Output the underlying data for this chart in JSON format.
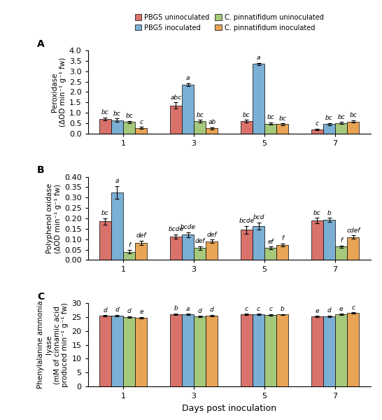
{
  "days": [
    1,
    3,
    5,
    7
  ],
  "bar_colors": [
    "#d9726a",
    "#7bafd4",
    "#a5c87a",
    "#e8a455"
  ],
  "legend_labels": [
    "PBG5 uninoculated",
    "PBG5 inoculated",
    "C. pinnatifidum uninoculated",
    "C. pinnatifidum inoculated"
  ],
  "panel_A": {
    "title": "A",
    "ylabel": "Peroxidase\n(ΔOD min⁻¹ g⁻¹ fw)",
    "ylim": [
      0,
      4.0
    ],
    "yticks": [
      0,
      0.5,
      1.0,
      1.5,
      2.0,
      2.5,
      3.0,
      3.5,
      4.0
    ],
    "values": [
      [
        0.7,
        0.65,
        0.55,
        0.27
      ],
      [
        1.35,
        2.35,
        0.6,
        0.25
      ],
      [
        0.6,
        3.35,
        0.48,
        0.45
      ],
      [
        0.2,
        0.45,
        0.5,
        0.58
      ]
    ],
    "errors": [
      [
        0.08,
        0.07,
        0.06,
        0.05
      ],
      [
        0.15,
        0.08,
        0.06,
        0.05
      ],
      [
        0.06,
        0.06,
        0.05,
        0.04
      ],
      [
        0.04,
        0.06,
        0.05,
        0.06
      ]
    ],
    "letters": [
      [
        "bc",
        "bc",
        "bc",
        "c"
      ],
      [
        "abc",
        "a",
        "bc",
        "ab"
      ],
      [
        "bc",
        "a",
        "bc",
        "bc"
      ],
      [
        "c",
        "bc",
        "bc",
        "bc"
      ]
    ]
  },
  "panel_B": {
    "title": "B",
    "ylabel": "Polyphenol oxidase\n(ΔOD min⁻¹ g⁻¹ fw)",
    "ylim": [
      0,
      0.4
    ],
    "yticks": [
      0,
      0.05,
      0.1,
      0.15,
      0.2,
      0.25,
      0.3,
      0.35,
      0.4
    ],
    "values": [
      [
        0.185,
        0.325,
        0.04,
        0.082
      ],
      [
        0.113,
        0.122,
        0.058,
        0.09
      ],
      [
        0.145,
        0.163,
        0.058,
        0.072
      ],
      [
        0.19,
        0.192,
        0.064,
        0.11
      ]
    ],
    "errors": [
      [
        0.015,
        0.03,
        0.008,
        0.01
      ],
      [
        0.01,
        0.012,
        0.008,
        0.008
      ],
      [
        0.018,
        0.018,
        0.006,
        0.007
      ],
      [
        0.012,
        0.01,
        0.006,
        0.008
      ]
    ],
    "letters": [
      [
        "bc",
        "a",
        "f",
        "def"
      ],
      [
        "bcde",
        "bcde",
        "def",
        "def"
      ],
      [
        "bcde",
        "bcd",
        "ef",
        "f"
      ],
      [
        "bc",
        "b",
        "f",
        "cdef"
      ]
    ]
  },
  "panel_C": {
    "title": "C",
    "ylabel": "Phenylalanine ammonia\nlyase\n(mM of cinnamic acid\nproduced min⁻¹ g⁻¹ fw)",
    "ylim": [
      0,
      30
    ],
    "yticks": [
      0,
      5,
      10,
      15,
      20,
      25,
      30
    ],
    "values": [
      [
        25.4,
        25.5,
        25.1,
        24.8
      ],
      [
        26.1,
        26.0,
        25.2,
        25.5
      ],
      [
        25.9,
        25.9,
        25.8,
        25.9
      ],
      [
        25.2,
        25.3,
        26.0,
        26.4
      ]
    ],
    "errors": [
      [
        0.25,
        0.3,
        0.25,
        0.22
      ],
      [
        0.25,
        0.22,
        0.22,
        0.25
      ],
      [
        0.25,
        0.25,
        0.22,
        0.22
      ],
      [
        0.22,
        0.22,
        0.22,
        0.25
      ]
    ],
    "letters": [
      [
        "d",
        "d",
        "d",
        "e"
      ],
      [
        "b",
        "a",
        "d",
        "d"
      ],
      [
        "c",
        "c",
        "c",
        "b"
      ],
      [
        "e",
        "d",
        "e",
        "c"
      ]
    ]
  },
  "xlabel": "Days post inoculation"
}
